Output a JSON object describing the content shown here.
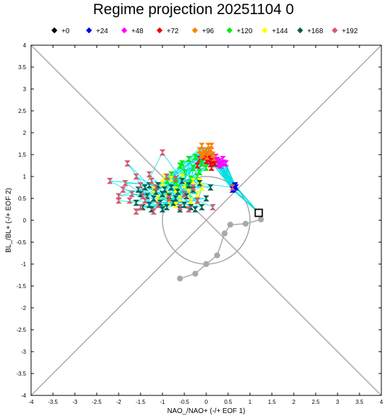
{
  "chart_data": {
    "type": "scatter",
    "title": "Regime projection 20251104 0",
    "xlabel": "NAO_/NAO+ (-/+ EOF 1)",
    "ylabel": "BL_/BL+ (-/+ EOF 2)",
    "xlim": [
      -4,
      4
    ],
    "ylim": [
      -4,
      4
    ],
    "xticks": [
      "-4",
      "-3.5",
      "-3",
      "-2.5",
      "-2",
      "-1.5",
      "-1",
      "-0.5",
      "0",
      "0.5",
      "1",
      "1.5",
      "2",
      "2.5",
      "3",
      "3.5",
      "4"
    ],
    "yticks": [
      "4",
      "3.5",
      "3",
      "2.5",
      "2",
      "1.5",
      "1",
      "0.5",
      "0",
      "-0.5",
      "-1",
      "-1.5",
      "-2",
      "-2.5",
      "-3",
      "-3.5",
      "-4"
    ],
    "legend_position": "top",
    "grid": false,
    "reference": {
      "diagonals": true,
      "circle_radius": 1,
      "color": "#a8a8a8"
    },
    "legend": [
      {
        "label": "+0",
        "color": "#000000"
      },
      {
        "label": "+24",
        "color": "#0000e0"
      },
      {
        "label": "+48",
        "color": "#ff00ff"
      },
      {
        "label": "+72",
        "color": "#ee0000"
      },
      {
        "label": "+96",
        "color": "#ff8000"
      },
      {
        "label": "+120",
        "color": "#00ee00"
      },
      {
        "label": "+144",
        "color": "#ffff00"
      },
      {
        "label": "+168",
        "color": "#006050"
      },
      {
        "label": "+192",
        "color": "#d05a6e"
      }
    ],
    "analysis_track": {
      "color": "#a8a8a8",
      "points": [
        [
          1.25,
          0.02
        ],
        [
          0.9,
          -0.08
        ],
        [
          0.55,
          -0.1
        ],
        [
          0.42,
          -0.3
        ],
        [
          0.25,
          -0.8
        ],
        [
          0.0,
          -1.0
        ],
        [
          -0.25,
          -1.22
        ],
        [
          -0.6,
          -1.33
        ]
      ]
    },
    "ensemble_lines": {
      "color": "#00e0e0"
    },
    "series": [
      {
        "lead": "+0",
        "points": [
          [
            1.2,
            0.17
          ]
        ]
      },
      {
        "lead": "+24",
        "points": [
          [
            0.65,
            0.78
          ],
          [
            0.62,
            0.72
          ],
          [
            0.68,
            0.75
          ],
          [
            0.6,
            0.7
          ],
          [
            0.66,
            0.8
          ]
        ]
      },
      {
        "lead": "+48",
        "points": [
          [
            0.3,
            1.35
          ],
          [
            0.35,
            1.3
          ],
          [
            0.25,
            1.38
          ],
          [
            0.4,
            1.32
          ],
          [
            0.2,
            1.3
          ],
          [
            0.32,
            1.25
          ],
          [
            0.15,
            1.4
          ],
          [
            0.38,
            1.4
          ],
          [
            0.28,
            1.28
          ],
          [
            0.1,
            1.35
          ],
          [
            0.45,
            1.3
          ],
          [
            0.22,
            1.45
          ]
        ]
      },
      {
        "lead": "+72",
        "points": [
          [
            -0.05,
            1.45
          ],
          [
            0.0,
            1.35
          ],
          [
            0.05,
            1.4
          ],
          [
            -0.1,
            1.3
          ],
          [
            0.1,
            1.28
          ],
          [
            0.15,
            1.35
          ],
          [
            -0.02,
            1.5
          ],
          [
            0.08,
            1.45
          ],
          [
            -0.15,
            1.4
          ],
          [
            0.2,
            1.3
          ],
          [
            0.12,
            1.2
          ],
          [
            -0.2,
            1.25
          ]
        ]
      },
      {
        "lead": "+96",
        "points": [
          [
            -0.1,
            1.7
          ],
          [
            0.0,
            1.6
          ],
          [
            0.05,
            1.7
          ],
          [
            -0.05,
            1.55
          ],
          [
            0.1,
            1.62
          ],
          [
            0.15,
            1.5
          ],
          [
            -0.15,
            1.6
          ],
          [
            0.02,
            1.45
          ],
          [
            0.08,
            1.55
          ],
          [
            -0.08,
            1.5
          ],
          [
            0.18,
            1.42
          ],
          [
            -0.12,
            1.48
          ],
          [
            0.12,
            1.7
          ]
        ]
      },
      {
        "lead": "+120",
        "points": [
          [
            -0.4,
            1.4
          ],
          [
            -0.3,
            1.2
          ],
          [
            -0.5,
            1.1
          ],
          [
            -0.2,
            1.0
          ],
          [
            -0.6,
            1.25
          ],
          [
            -0.7,
            0.9
          ],
          [
            -0.1,
            1.3
          ],
          [
            -0.45,
            0.8
          ],
          [
            -0.8,
            1.05
          ],
          [
            -0.55,
            1.3
          ],
          [
            -0.35,
            0.95
          ],
          [
            -0.25,
            1.45
          ],
          [
            -0.65,
            0.75
          ],
          [
            -0.15,
            1.1
          ],
          [
            -0.9,
            0.9
          ],
          [
            0.0,
            1.2
          ]
        ]
      },
      {
        "lead": "+144",
        "points": [
          [
            -0.5,
            0.8
          ],
          [
            -0.7,
            0.7
          ],
          [
            -0.9,
            0.6
          ],
          [
            -0.3,
            0.9
          ],
          [
            -1.0,
            0.85
          ],
          [
            -0.2,
            0.6
          ],
          [
            -0.6,
            0.5
          ],
          [
            -0.8,
            0.95
          ],
          [
            -1.2,
            0.7
          ],
          [
            -0.4,
            0.65
          ],
          [
            -0.1,
            0.75
          ],
          [
            -1.1,
            0.5
          ],
          [
            -0.55,
            1.0
          ],
          [
            -0.85,
            0.4
          ],
          [
            -0.35,
            0.45
          ],
          [
            -0.95,
            1.0
          ],
          [
            -0.15,
            0.9
          ],
          [
            -0.7,
            0.35
          ]
        ]
      },
      {
        "lead": "+168",
        "points": [
          [
            -1.4,
            0.75
          ],
          [
            -1.2,
            0.5
          ],
          [
            -1.3,
            0.35
          ],
          [
            -0.9,
            0.3
          ],
          [
            -1.5,
            0.6
          ],
          [
            -1.1,
            0.8
          ],
          [
            -0.7,
            0.5
          ],
          [
            -0.5,
            0.35
          ],
          [
            -1.6,
            0.4
          ],
          [
            -1.0,
            0.6
          ],
          [
            -0.3,
            0.7
          ],
          [
            -0.8,
            0.75
          ],
          [
            -1.35,
            0.55
          ],
          [
            -0.6,
            0.25
          ],
          [
            -1.05,
            0.4
          ],
          [
            -0.2,
            0.45
          ],
          [
            -0.4,
            0.8
          ],
          [
            -1.45,
            0.3
          ],
          [
            -0.95,
            0.7
          ],
          [
            -1.25,
            0.25
          ],
          [
            -0.65,
            0.65
          ],
          [
            -0.15,
            0.85
          ],
          [
            -0.75,
            0.4
          ],
          [
            -1.15,
            0.65
          ],
          [
            -0.45,
            0.55
          ],
          [
            -0.1,
            0.3
          ],
          [
            -1.55,
            0.7
          ],
          [
            -0.85,
            0.55
          ],
          [
            -0.25,
            0.25
          ],
          [
            0.0,
            0.5
          ],
          [
            -0.55,
            0.9
          ],
          [
            -1.3,
            0.8
          ],
          [
            -0.35,
            0.3
          ],
          [
            0.1,
            0.75
          ],
          [
            -0.7,
            0.95
          ],
          [
            -1.0,
            0.25
          ]
        ]
      },
      {
        "lead": "+192",
        "points": [
          [
            -1.0,
            1.55
          ],
          [
            -1.8,
            1.3
          ],
          [
            -1.6,
            1.0
          ],
          [
            -1.85,
            0.85
          ],
          [
            -2.0,
            0.55
          ],
          [
            -2.2,
            0.9
          ],
          [
            -1.7,
            0.6
          ],
          [
            -1.4,
            0.45
          ],
          [
            -2.0,
            0.45
          ],
          [
            -1.5,
            0.8
          ],
          [
            -1.25,
            0.9
          ],
          [
            -0.6,
            0.3
          ],
          [
            -1.2,
            0.2
          ],
          [
            -0.9,
            1.0
          ],
          [
            -1.6,
            0.2
          ],
          [
            -1.1,
            0.35
          ],
          [
            -0.7,
            0.95
          ],
          [
            -0.3,
            0.75
          ],
          [
            -1.3,
            1.05
          ],
          [
            -0.5,
            0.6
          ],
          [
            0.15,
            0.3
          ],
          [
            0.6,
            0.75
          ],
          [
            -1.75,
            0.45
          ],
          [
            -0.85,
            0.5
          ],
          [
            -1.9,
            0.7
          ],
          [
            -1.45,
            0.55
          ],
          [
            -0.4,
            0.25
          ],
          [
            -1.15,
            0.75
          ],
          [
            -0.2,
            0.45
          ],
          [
            -1.5,
            0.3
          ]
        ]
      }
    ]
  }
}
